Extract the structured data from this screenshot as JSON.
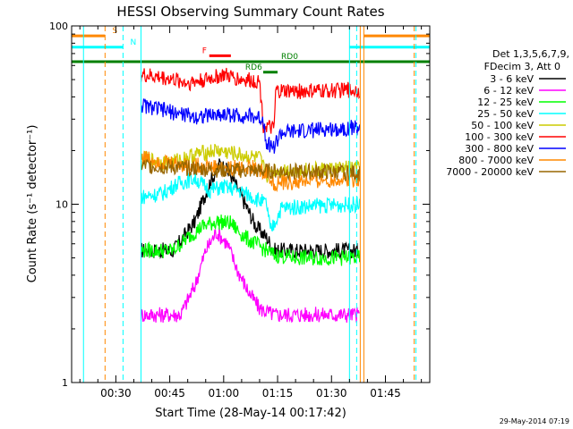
{
  "chart_data": {
    "type": "line",
    "title": "HESSI Observing Summary Count Rates",
    "xlabel": "Start Time (28-May-14 00:17:42)",
    "ylabel": "Count Rate (s⁻¹ detector⁻¹)",
    "y_scale": "log",
    "ylim": [
      1,
      100
    ],
    "xlim": [
      "00:17:42",
      "01:57:20"
    ],
    "x_ticks": [
      "00:30",
      "00:45",
      "01:00",
      "01:15",
      "01:30",
      "01:45"
    ],
    "y_ticks": [
      "1",
      "10",
      "100"
    ],
    "legend": {
      "position": "right",
      "header_lines": [
        "Det 1,3,5,6,7,9,",
        "FDecim 3, Att 0"
      ],
      "entries": [
        {
          "label": "3 - 6 keV",
          "color": "#000000"
        },
        {
          "label": "6 - 12 keV",
          "color": "#ff00ff"
        },
        {
          "label": "12 - 25 keV",
          "color": "#00ff00"
        },
        {
          "label": "25 - 50 keV",
          "color": "#00ffff"
        },
        {
          "label": "50 - 100 keV",
          "color": "#cccc00"
        },
        {
          "label": "100 - 300 keV",
          "color": "#ff0000"
        },
        {
          "label": "300 - 800 keV",
          "color": "#0000ff"
        },
        {
          "label": "800 - 7000 keV",
          "color": "#ff8800"
        },
        {
          "label": "7000 - 20000 keV",
          "color": "#996600"
        }
      ]
    },
    "series": [
      {
        "name": "3 - 6 keV",
        "color": "#000000",
        "x": [
          "00:37",
          "00:46",
          "00:52",
          "00:56",
          "00:59",
          "01:02",
          "01:06",
          "01:09",
          "01:12",
          "01:14",
          "01:16",
          "01:25",
          "01:35",
          "01:38"
        ],
        "y": [
          5.5,
          5.5,
          8.0,
          13.0,
          17.0,
          14.5,
          10.0,
          7.5,
          6.5,
          5.5,
          5.5,
          5.5,
          5.5,
          5.5
        ]
      },
      {
        "name": "6 - 12 keV",
        "color": "#ff00ff",
        "x": [
          "00:37",
          "00:48",
          "00:52",
          "00:55",
          "00:58",
          "01:01",
          "01:04",
          "01:07",
          "01:10",
          "01:14",
          "01:38"
        ],
        "y": [
          2.4,
          2.4,
          3.5,
          5.5,
          7.0,
          6.0,
          4.2,
          3.2,
          2.6,
          2.4,
          2.4
        ]
      },
      {
        "name": "12 - 25 keV",
        "color": "#00ff00",
        "x": [
          "00:37",
          "00:46",
          "00:50",
          "00:54",
          "00:58",
          "01:02",
          "01:06",
          "01:10",
          "01:14",
          "01:20",
          "01:30",
          "01:38"
        ],
        "y": [
          5.5,
          5.5,
          6.5,
          7.5,
          8.0,
          7.8,
          6.5,
          5.8,
          5.2,
          5.0,
          5.0,
          5.0
        ]
      },
      {
        "name": "25 - 50 keV",
        "color": "#00ffff",
        "x": [
          "00:37",
          "00:43",
          "00:47",
          "00:52",
          "00:56",
          "01:00",
          "01:04",
          "01:08",
          "01:12",
          "01:13",
          "01:16",
          "01:25",
          "01:38"
        ],
        "y": [
          11.0,
          11.5,
          13.0,
          14.0,
          12.0,
          12.5,
          12.0,
          11.0,
          10.0,
          7.0,
          9.5,
          9.8,
          10.0
        ]
      },
      {
        "name": "50 - 100 keV",
        "color": "#cccc00",
        "x": [
          "00:37",
          "00:45",
          "00:52",
          "00:58",
          "01:04",
          "01:10",
          "01:12",
          "01:14",
          "01:25",
          "01:38"
        ],
        "y": [
          18.0,
          17.0,
          19.0,
          20.0,
          19.0,
          18.0,
          14.5,
          15.5,
          15.5,
          16.0
        ]
      },
      {
        "name": "100 - 300 keV",
        "color": "#ff0000",
        "x": [
          "00:37",
          "00:44",
          "00:50",
          "00:55",
          "01:00",
          "01:05",
          "01:10",
          "01:11",
          "01:14",
          "01:14.5",
          "01:25",
          "01:38"
        ],
        "y": [
          53.0,
          51.0,
          48.0,
          50.0,
          53.0,
          50.0,
          49.0,
          28.0,
          26.0,
          43.0,
          43.0,
          44.0
        ]
      },
      {
        "name": "300 - 800 keV",
        "color": "#0000ff",
        "x": [
          "00:37",
          "00:45",
          "00:52",
          "01:00",
          "01:08",
          "01:11",
          "01:12",
          "01:14",
          "01:16",
          "01:25",
          "01:38"
        ],
        "y": [
          36.0,
          33.0,
          31.0,
          32.0,
          31.0,
          30.0,
          22.0,
          21.0,
          25.0,
          26.0,
          27.0
        ]
      },
      {
        "name": "800 - 7000 keV",
        "color": "#ff8800",
        "x": [
          "00:37",
          "00:45",
          "00:52",
          "01:00",
          "01:08",
          "01:12",
          "01:14",
          "01:25",
          "01:38"
        ],
        "y": [
          18.5,
          17.0,
          16.5,
          16.0,
          16.0,
          15.0,
          13.0,
          13.5,
          14.0
        ]
      },
      {
        "name": "7000 - 20000 keV",
        "color": "#996600",
        "x": [
          "00:37",
          "01:00",
          "01:38"
        ],
        "y": [
          16.5,
          15.5,
          15.0
        ]
      }
    ],
    "flag_bars": [
      {
        "label": "S",
        "color": "#ff8800",
        "level": 88,
        "segments": [
          [
            "00:17:42",
            "00:27"
          ],
          [
            "01:39",
            "01:57:20"
          ]
        ]
      },
      {
        "label": "N",
        "color": "#00ffff",
        "level": 76,
        "segments": [
          [
            "00:17:42",
            "00:32"
          ],
          [
            "01:35",
            "01:57:20"
          ]
        ]
      },
      {
        "label": "F",
        "color": "#ff0000",
        "level": 68,
        "segments": [
          [
            "00:56",
            "01:02"
          ]
        ]
      },
      {
        "label": "RD0",
        "color": "#008000",
        "level": 63,
        "segments": [
          [
            "00:17:42",
            "01:57:20"
          ]
        ]
      },
      {
        "label": "RD6",
        "color": "#008000",
        "level": 55,
        "segments": [
          [
            "01:11",
            "01:15"
          ]
        ]
      }
    ],
    "vertical_markers": [
      {
        "x": "00:21",
        "color": "#00ffff",
        "style": "solid"
      },
      {
        "x": "00:27",
        "color": "#ff8800",
        "style": "dashed"
      },
      {
        "x": "00:37",
        "color": "#00ffff",
        "style": "solid"
      },
      {
        "x": "00:32",
        "color": "#00ffff",
        "style": "dashed"
      },
      {
        "x": "01:35",
        "color": "#00ffff",
        "style": "solid"
      },
      {
        "x": "01:37",
        "color": "#00ffff",
        "style": "dashed"
      },
      {
        "x": "01:38",
        "color": "#ff8800",
        "style": "solid"
      },
      {
        "x": "01:39",
        "color": "#ff8800",
        "style": "solid"
      },
      {
        "x": "01:53",
        "color": "#ff8800",
        "style": "dashed"
      },
      {
        "x": "01:53.5",
        "color": "#00ffff",
        "style": "dashed"
      }
    ],
    "timestamp": "29-May-2014 07:19"
  }
}
